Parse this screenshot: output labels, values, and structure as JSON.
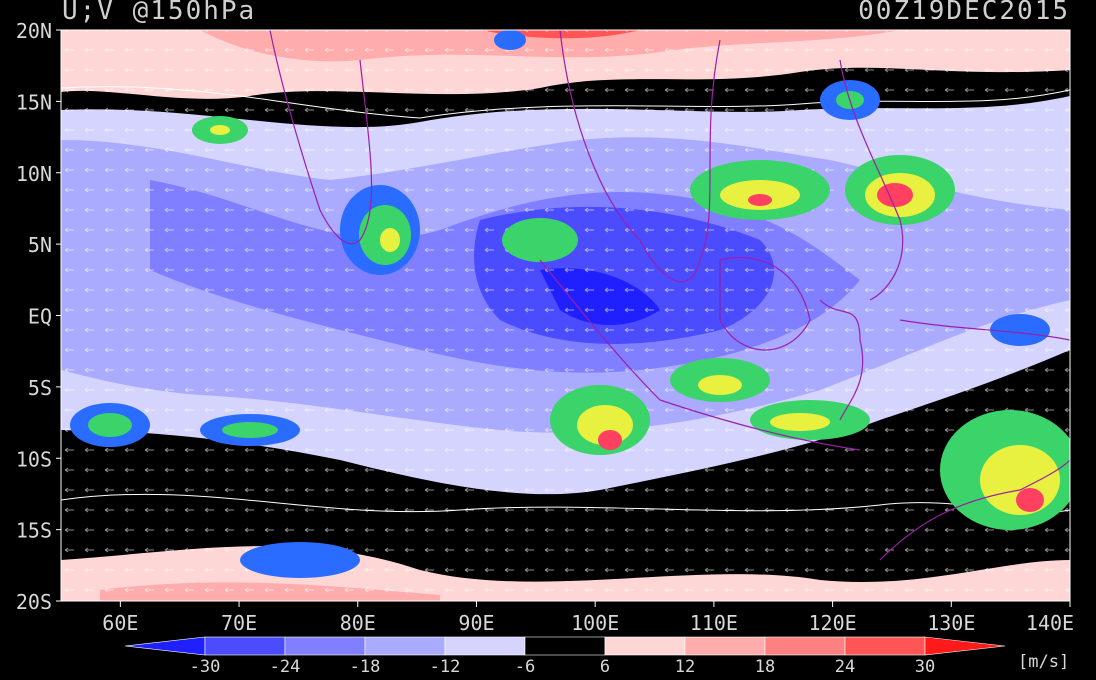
{
  "header": {
    "variable": "U;V @150hPa",
    "valid_time": "00Z19DEC2015"
  },
  "axes": {
    "lat_labels": [
      "20N",
      "15N",
      "10N",
      "5N",
      "EQ",
      "5S",
      "10S",
      "15S",
      "20S"
    ],
    "lat_values": [
      20,
      15,
      10,
      5,
      0,
      -5,
      -10,
      -15,
      -20
    ],
    "lon_labels": [
      "60E",
      "70E",
      "80E",
      "90E",
      "100E",
      "110E",
      "120E",
      "130E",
      "140E"
    ],
    "lon_values": [
      60,
      70,
      80,
      90,
      100,
      110,
      120,
      130,
      140
    ],
    "lon_range": [
      55,
      140
    ],
    "lat_range": [
      -20,
      20
    ]
  },
  "colorbar": {
    "tick_labels": [
      "-30",
      "-24",
      "-18",
      "-12",
      "-6",
      "6",
      "12",
      "18",
      "24",
      "30"
    ],
    "bins": [
      {
        "color": "#2020ff"
      },
      {
        "color": "#4c4cff"
      },
      {
        "color": "#7f7fff"
      },
      {
        "color": "#aaaaff"
      },
      {
        "color": "#d4d4ff"
      },
      {
        "color": "#000000"
      },
      {
        "color": "#ffd6d6"
      },
      {
        "color": "#ffacac"
      },
      {
        "color": "#ff8080"
      },
      {
        "color": "#ff5555"
      },
      {
        "color": "#ff1a1a"
      }
    ],
    "units": "[m/s]"
  },
  "map_layers": {
    "shading": "zonal wind U (m/s)",
    "vectors": "white wind arrows",
    "overlay": "brightness/convection blobs (blue-green-yellow-red)",
    "coastline_color": "#9b1fa8"
  }
}
